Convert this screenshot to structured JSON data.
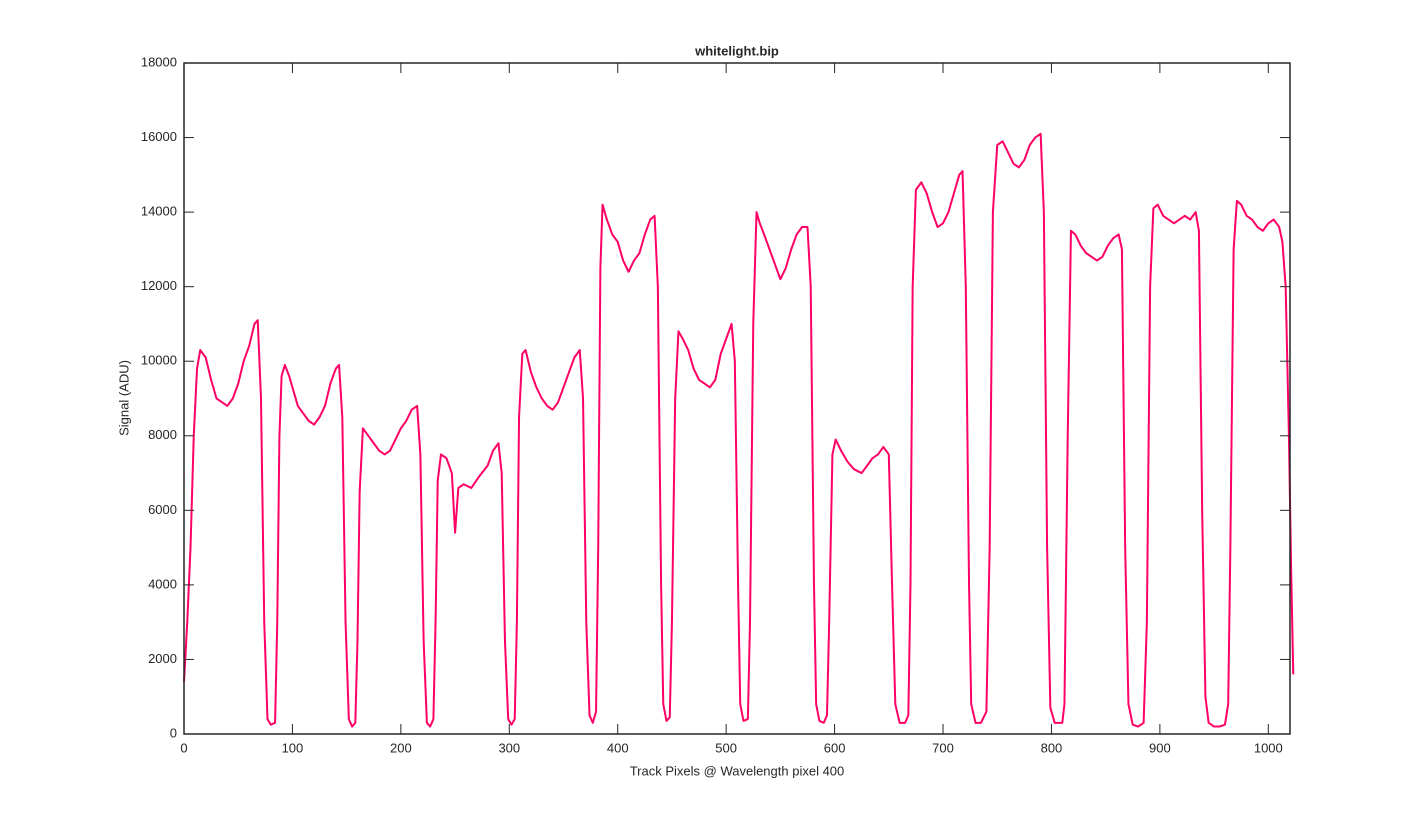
{
  "chart_data": {
    "type": "line",
    "title": "whitelight.bip",
    "x_label": "Track Pixels @ Wavelength pixel 400",
    "y_label": "Signal (ADU)",
    "xlim": [
      0,
      1020
    ],
    "xticks": [
      0,
      100,
      200,
      300,
      400,
      500,
      600,
      700,
      800,
      900,
      1000
    ],
    "ylim": [
      0,
      18000
    ],
    "yticks": [
      0,
      2000,
      4000,
      6000,
      8000,
      10000,
      12000,
      14000,
      16000,
      18000
    ],
    "grid": false,
    "color": "#ff0066",
    "x": [
      0,
      3,
      6,
      9,
      12,
      15,
      20,
      25,
      30,
      35,
      40,
      45,
      50,
      55,
      60,
      65,
      68,
      71,
      74,
      77,
      80,
      84,
      86,
      88,
      90,
      93,
      97,
      100,
      105,
      110,
      115,
      120,
      125,
      130,
      135,
      140,
      143,
      146,
      149,
      152,
      155,
      158,
      160,
      162,
      165,
      170,
      175,
      180,
      185,
      190,
      195,
      200,
      205,
      210,
      215,
      218,
      221,
      224,
      227,
      230,
      232,
      234,
      237,
      242,
      247,
      250,
      253,
      258,
      265,
      272,
      280,
      285,
      290,
      293,
      296,
      299,
      302,
      305,
      307,
      309,
      312,
      315,
      320,
      325,
      330,
      335,
      340,
      345,
      350,
      355,
      360,
      365,
      368,
      371,
      374,
      377,
      380,
      382,
      384,
      386,
      390,
      395,
      400,
      405,
      410,
      415,
      420,
      425,
      430,
      434,
      437,
      440,
      442,
      445,
      448,
      450,
      453,
      456,
      460,
      465,
      470,
      475,
      480,
      485,
      490,
      495,
      500,
      505,
      508,
      511,
      513,
      516,
      520,
      522,
      525,
      528,
      531,
      535,
      540,
      545,
      550,
      555,
      560,
      565,
      570,
      575,
      578,
      581,
      583,
      586,
      590,
      593,
      595,
      598,
      601,
      606,
      612,
      618,
      625,
      630,
      635,
      640,
      645,
      650,
      653,
      656,
      660,
      665,
      668,
      670,
      672,
      675,
      680,
      685,
      690,
      695,
      700,
      705,
      710,
      715,
      718,
      721,
      724,
      726,
      730,
      735,
      740,
      743,
      746,
      750,
      755,
      760,
      765,
      770,
      775,
      780,
      785,
      790,
      793,
      796,
      799,
      803,
      810,
      812,
      815,
      818,
      822,
      827,
      832,
      837,
      842,
      847,
      852,
      857,
      862,
      865,
      868,
      871,
      875,
      880,
      885,
      888,
      891,
      894,
      898,
      903,
      908,
      913,
      918,
      923,
      928,
      933,
      936,
      939,
      942,
      945,
      950,
      955,
      960,
      963,
      965,
      968,
      971,
      975,
      980,
      985,
      990,
      995,
      1000,
      1005,
      1010,
      1013,
      1016,
      1019,
      1021,
      1023
    ],
    "values": [
      1400,
      3000,
      5000,
      8000,
      9800,
      10300,
      10100,
      9500,
      9000,
      8900,
      8800,
      9000,
      9400,
      10000,
      10400,
      11000,
      11100,
      9000,
      3000,
      400,
      250,
      300,
      3000,
      8000,
      9600,
      9900,
      9600,
      9300,
      8800,
      8600,
      8400,
      8300,
      8500,
      8800,
      9400,
      9800,
      9900,
      8500,
      3000,
      400,
      200,
      300,
      2500,
      6500,
      8200,
      8000,
      7800,
      7600,
      7500,
      7600,
      7900,
      8200,
      8400,
      8700,
      8800,
      7500,
      2500,
      300,
      200,
      400,
      3000,
      6800,
      7500,
      7400,
      7000,
      5400,
      6600,
      6700,
      6600,
      6900,
      7200,
      7600,
      7800,
      7000,
      2500,
      400,
      250,
      400,
      3000,
      8500,
      10200,
      10300,
      9700,
      9300,
      9000,
      8800,
      8700,
      8900,
      9300,
      9700,
      10100,
      10300,
      9000,
      3000,
      500,
      300,
      600,
      5000,
      12500,
      14200,
      13800,
      13400,
      13200,
      12700,
      12400,
      12700,
      12900,
      13400,
      13800,
      13900,
      12000,
      4000,
      800,
      350,
      450,
      3000,
      9000,
      10800,
      10600,
      10300,
      9800,
      9500,
      9400,
      9300,
      9500,
      10200,
      10600,
      11000,
      10000,
      4000,
      800,
      350,
      400,
      3000,
      11000,
      14000,
      13700,
      13400,
      13000,
      12600,
      12200,
      12500,
      13000,
      13400,
      13600,
      13600,
      12000,
      4000,
      800,
      350,
      300,
      500,
      3000,
      7500,
      7900,
      7600,
      7300,
      7100,
      7000,
      7200,
      7400,
      7500,
      7700,
      7500,
      4000,
      800,
      300,
      300,
      500,
      4000,
      12000,
      14600,
      14800,
      14500,
      14000,
      13600,
      13700,
      14000,
      14500,
      15000,
      15100,
      12000,
      4000,
      800,
      300,
      300,
      600,
      5000,
      14000,
      15800,
      15900,
      15600,
      15300,
      15200,
      15400,
      15800,
      16000,
      16100,
      14000,
      5000,
      700,
      300,
      300,
      800,
      8000,
      13500,
      13400,
      13100,
      12900,
      12800,
      12700,
      12800,
      13100,
      13300,
      13400,
      13000,
      5000,
      800,
      250,
      200,
      300,
      3000,
      12000,
      14100,
      14200,
      13900,
      13800,
      13700,
      13800,
      13900,
      13800,
      14000,
      13500,
      6000,
      1000,
      300,
      200,
      200,
      250,
      800,
      5000,
      13000,
      14300,
      14200,
      13900,
      13800,
      13600,
      13500,
      13700,
      13800,
      13600,
      13200,
      12000,
      8000,
      4500,
      1600
    ]
  }
}
